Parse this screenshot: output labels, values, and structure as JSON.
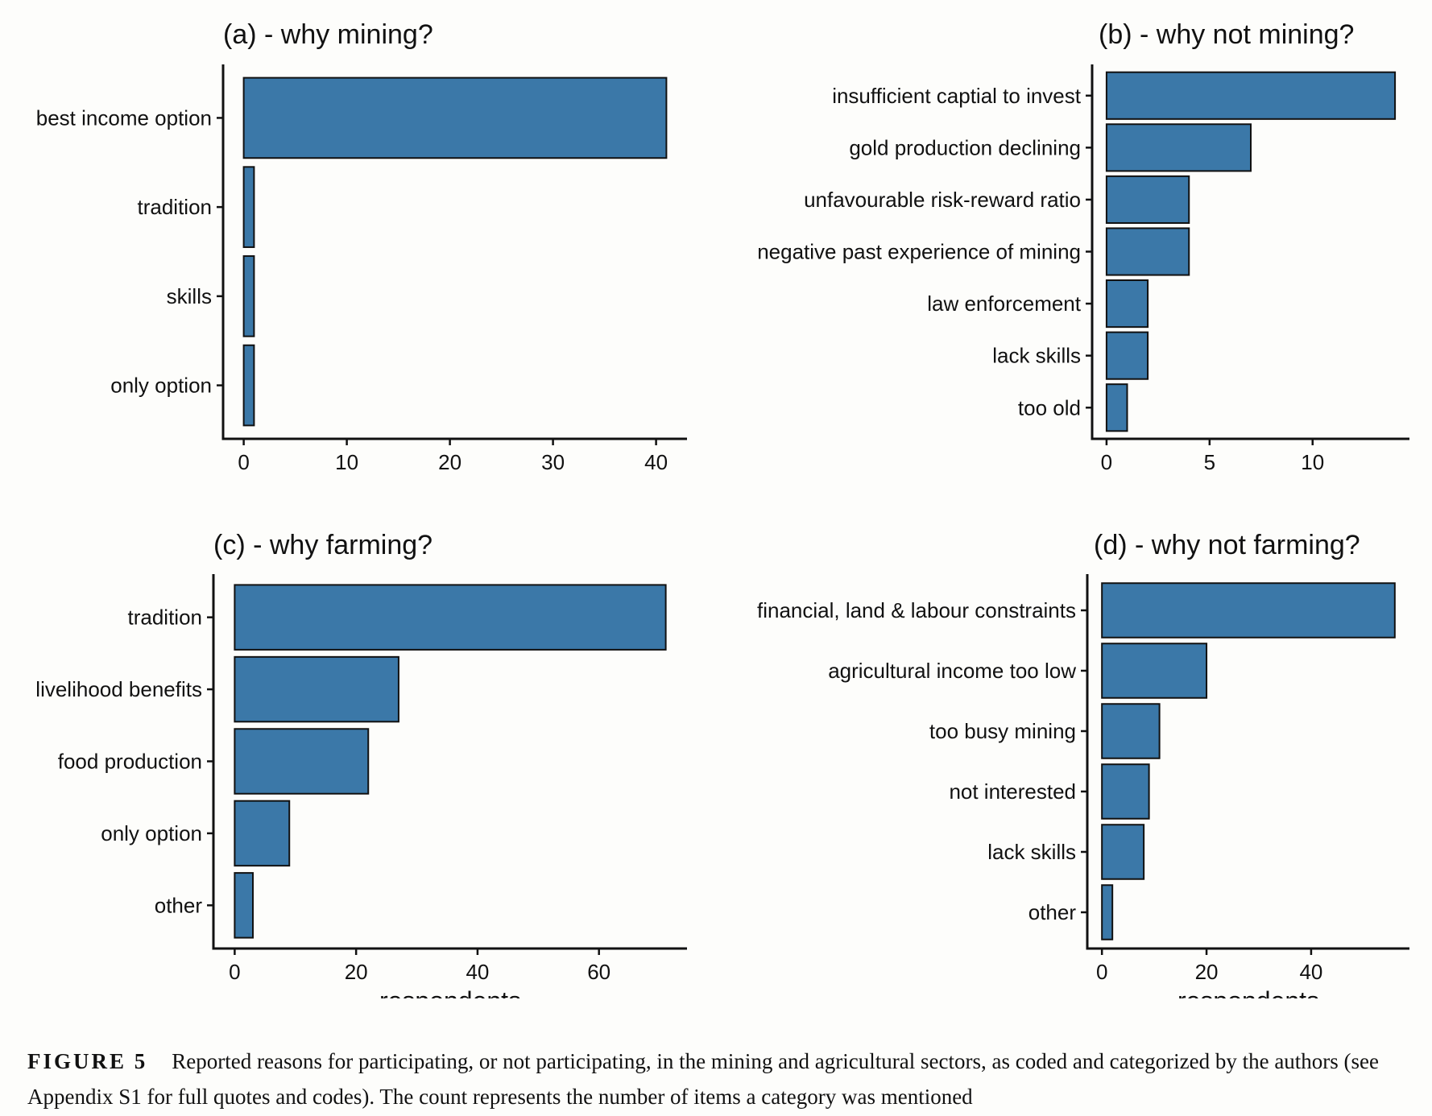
{
  "chart_data": [
    {
      "type": "bar",
      "orientation": "horizontal",
      "title": "(a) - why mining?",
      "categories": [
        "best income option",
        "tradition",
        "skills",
        "only option"
      ],
      "values": [
        41,
        1,
        1,
        1
      ],
      "xlabel": "",
      "xlim": [
        -2,
        43
      ],
      "xticks": [
        0,
        10,
        20,
        30,
        40
      ],
      "color": "#3b78a8"
    },
    {
      "type": "bar",
      "orientation": "horizontal",
      "title": "(b) - why not mining?",
      "categories": [
        "insufficient captial to invest",
        "gold production declining",
        "unfavourable risk-reward ratio",
        "negative past experience of mining",
        "law enforcement",
        "lack skills",
        "too old"
      ],
      "values": [
        14,
        7,
        4,
        4,
        2,
        2,
        1
      ],
      "xlabel": "",
      "xlim": [
        -0.7,
        14.7
      ],
      "xticks": [
        0,
        5,
        10
      ],
      "color": "#3b78a8"
    },
    {
      "type": "bar",
      "orientation": "horizontal",
      "title": "(c) - why farming?",
      "categories": [
        "tradition",
        "livelihood benefits",
        "food production",
        "only option",
        "other"
      ],
      "values": [
        71,
        27,
        22,
        9,
        3
      ],
      "xlabel": "respondents",
      "xlim": [
        -3.5,
        74.5
      ],
      "xticks": [
        0,
        20,
        40,
        60
      ],
      "color": "#3b78a8"
    },
    {
      "type": "bar",
      "orientation": "horizontal",
      "title": "(d) - why not farming?",
      "categories": [
        "financial, land & labour constraints",
        "agricultural income too low",
        "too busy mining",
        "not interested",
        "lack skills",
        "other"
      ],
      "values": [
        56,
        20,
        11,
        9,
        8,
        2
      ],
      "xlabel": "respondents",
      "xlim": [
        -2.8,
        58.8
      ],
      "xticks": [
        0,
        20,
        40
      ],
      "color": "#3b78a8"
    }
  ],
  "caption": {
    "label": "FIGURE 5",
    "text": "Reported reasons for participating, or not participating, in the mining and agricultural sectors, as coded and categorized by the authors (see Appendix S1 for full quotes and codes). The count represents the number of items a category was mentioned"
  }
}
